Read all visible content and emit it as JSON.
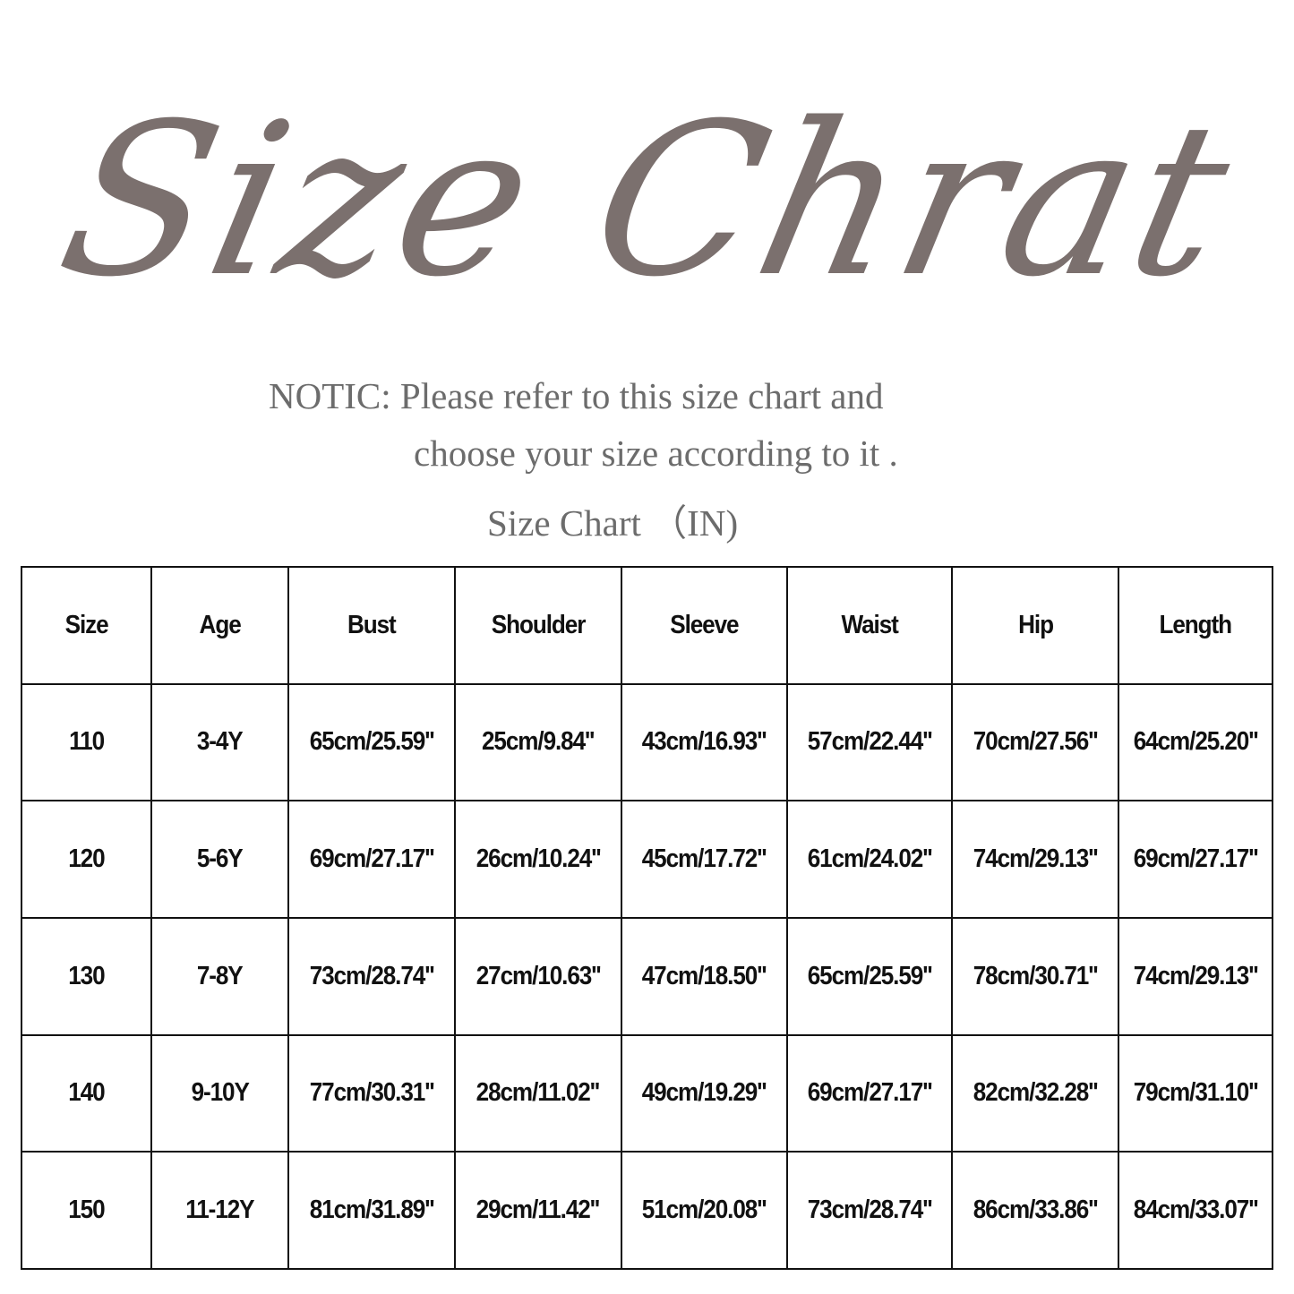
{
  "title": "Size Chrat",
  "notice_line1": "NOTIC: Please refer to this size chart and",
  "notice_line2": "choose your size according to it .",
  "chart_label": "Size Chart （IN)",
  "table": {
    "headers": [
      "Size",
      "Age",
      "Bust",
      "Shoulder",
      "Sleeve",
      "Waist",
      "Hip",
      "Length"
    ],
    "rows": [
      [
        "110",
        "3-4Y",
        "65cm/25.59''",
        "25cm/9.84''",
        "43cm/16.93''",
        "57cm/22.44''",
        "70cm/27.56''",
        "64cm/25.20''"
      ],
      [
        "120",
        "5-6Y",
        "69cm/27.17''",
        "26cm/10.24''",
        "45cm/17.72''",
        "61cm/24.02''",
        "74cm/29.13''",
        "69cm/27.17''"
      ],
      [
        "130",
        "7-8Y",
        "73cm/28.74''",
        "27cm/10.63''",
        "47cm/18.50''",
        "65cm/25.59''",
        "78cm/30.71''",
        "74cm/29.13''"
      ],
      [
        "140",
        "9-10Y",
        "77cm/30.31''",
        "28cm/11.02''",
        "49cm/19.29''",
        "69cm/27.17''",
        "82cm/32.28''",
        "79cm/31.10''"
      ],
      [
        "150",
        "11-12Y",
        "81cm/31.89''",
        "29cm/11.42''",
        "51cm/20.08''",
        "73cm/28.74''",
        "86cm/33.86''",
        "84cm/33.07''"
      ]
    ]
  }
}
